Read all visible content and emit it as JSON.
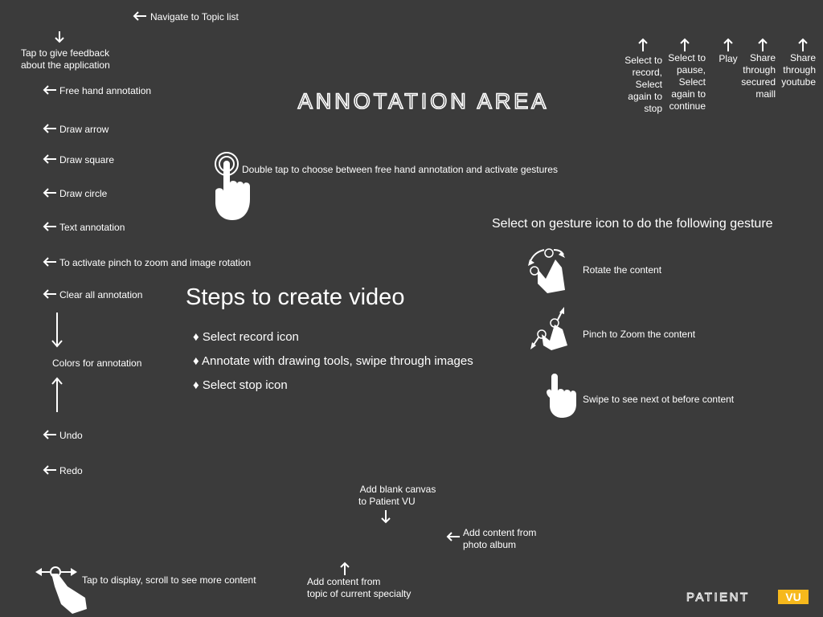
{
  "top": {
    "nav_topic": "Navigate to Topic list",
    "feedback": [
      "Tap to give feedback",
      "about the application"
    ]
  },
  "toolbar_left": [
    "Free hand annotation",
    "Draw arrow",
    "Draw square",
    "Draw circle",
    "Text annotation",
    "To activate pinch to zoom and image rotation",
    "Clear all annotation",
    "Colors for annotation",
    "Undo",
    "Redo"
  ],
  "toolbar_right": {
    "record": [
      "Select to",
      "record,",
      "Select",
      "again to",
      "stop"
    ],
    "pause": [
      "Select to",
      "pause,",
      "Select",
      "again to",
      "continue"
    ],
    "play": [
      "Play"
    ],
    "mail": [
      "Share",
      "through",
      "secured",
      "maill"
    ],
    "youtube": [
      "Share",
      "through",
      "youtube"
    ]
  },
  "title": "ANNOTATION AREA",
  "double_tap": "Double tap to choose between free hand annotation and activate gestures",
  "steps": {
    "heading": "Steps to create video",
    "items": [
      "Select record icon",
      "Annotate with drawing tools, swipe through images",
      "Select stop icon"
    ]
  },
  "gestures": {
    "heading": "Select on gesture icon to do the following gesture",
    "rotate": "Rotate the content",
    "pinch": "Pinch to Zoom the content",
    "swipe": "Swipe to see next ot before content"
  },
  "bottom": {
    "blank_canvas": [
      "Add blank canvas",
      "to Patient VU"
    ],
    "photo_album": [
      "Add content from",
      "photo album"
    ],
    "topic_content": [
      "Add content from",
      "topic of current specialty"
    ],
    "tap_display": "Tap to display, scroll to see more content"
  },
  "brand": {
    "part1": "PATIENT",
    "part2": "VU",
    "accent": "#f6b81c"
  },
  "colors": {
    "background": "#3b3b3b",
    "text": "#ffffff"
  }
}
